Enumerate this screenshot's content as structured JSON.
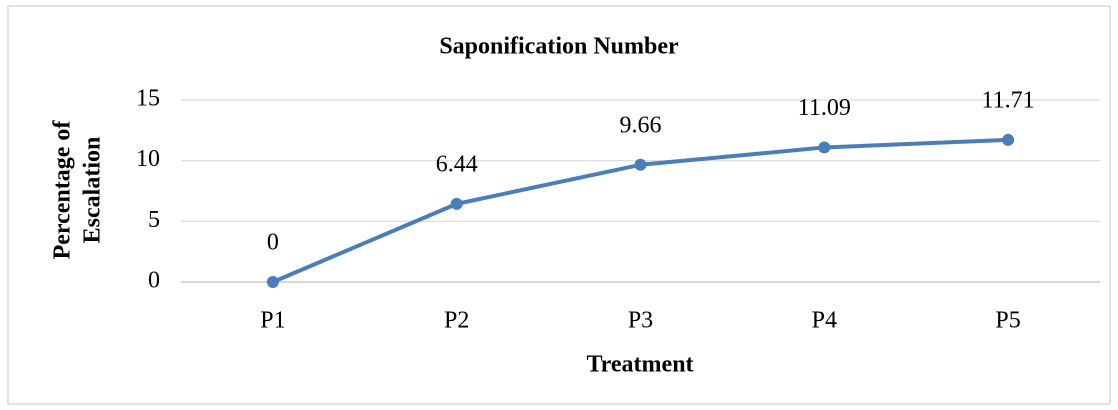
{
  "chart_data": {
    "type": "line",
    "title": "Saponification Number",
    "categories": [
      "P1",
      "P2",
      "P3",
      "P4",
      "P5"
    ],
    "series": [
      {
        "name": "Saponification Number",
        "color": "#4a7ebb",
        "values": [
          0,
          6.44,
          9.66,
          11.09,
          11.71
        ]
      }
    ],
    "ylim": [
      0,
      15
    ],
    "yticks": [
      0,
      5,
      10,
      15
    ],
    "grid": true,
    "xlabel": "Treatment",
    "ylabel": [
      "Percentage of",
      "Escalation"
    ]
  }
}
